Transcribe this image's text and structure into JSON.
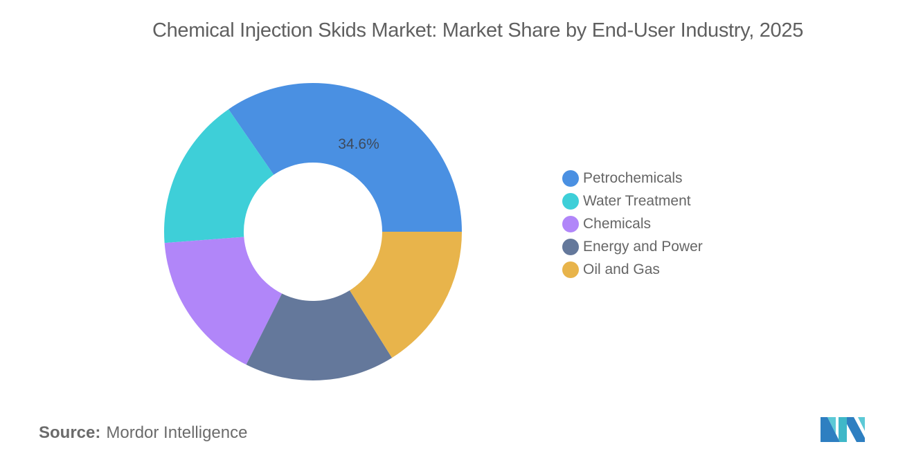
{
  "title": "Chemical Injection Skids Market: Market Share by End-User Industry, 2025",
  "chart_data": {
    "type": "pie",
    "variant": "donut",
    "title": "Chemical Injection Skids Market: Market Share by End-User Industry, 2025",
    "categories": [
      "Petrochemicals",
      "Water Treatment",
      "Chemicals",
      "Energy and Power",
      "Oil and Gas"
    ],
    "values": [
      34.6,
      16.6,
      16.4,
      16.3,
      16.1
    ],
    "colors": [
      "#4a90e2",
      "#3ecfd8",
      "#b186f9",
      "#64789b",
      "#e8b44b"
    ],
    "data_labels": [
      {
        "category": "Petrochemicals",
        "text": "34.6%"
      }
    ],
    "legend_position": "right"
  },
  "legend": {
    "items": [
      {
        "label": "Petrochemicals",
        "color": "#4a90e2"
      },
      {
        "label": "Water Treatment",
        "color": "#3ecfd8"
      },
      {
        "label": "Chemicals",
        "color": "#b186f9"
      },
      {
        "label": "Energy and Power",
        "color": "#64789b"
      },
      {
        "label": "Oil and Gas",
        "color": "#e8b44b"
      }
    ]
  },
  "labels": {
    "petrochemicals_value": "34.6%"
  },
  "source": {
    "prefix": "Source:",
    "name": "Mordor Intelligence"
  },
  "logo": {
    "icon": "mordor-intelligence-logo-icon"
  }
}
